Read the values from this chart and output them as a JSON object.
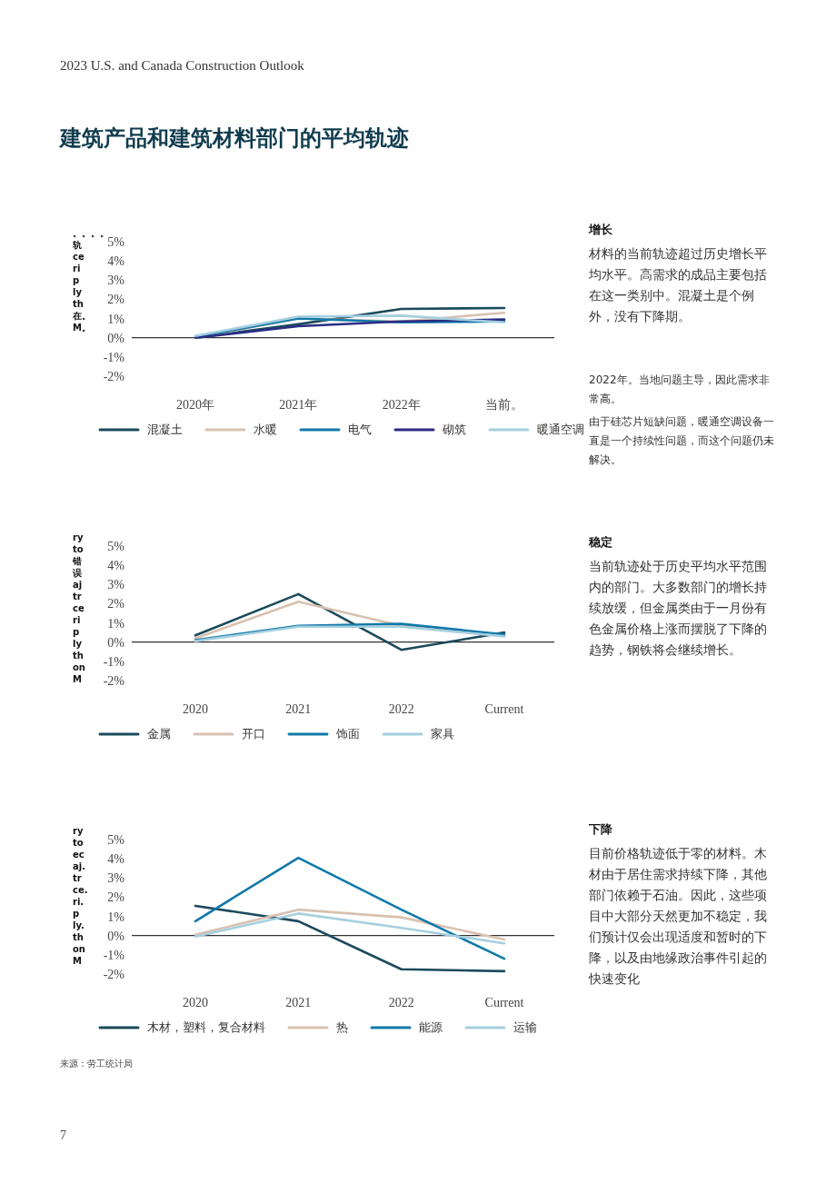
{
  "chart_data": [
    {
      "type": "line",
      "title": "建筑产品和建筑材料部门的平均轨迹",
      "subtitle": "2023 U.S. and Canada Construction Outlook",
      "ylabel": "。。。。轨\nce\nri\np\nly\nth\n在。\nM。",
      "categories": [
        "2020年",
        "2021年",
        "2022年",
        "当前。"
      ],
      "ylim": [
        -2,
        5
      ],
      "yticks": [
        {
          "value": -2,
          "label": "-2%"
        },
        {
          "value": -1,
          "label": "-1%"
        },
        {
          "value": 0,
          "label": "0%"
        },
        {
          "value": 1,
          "label": "1%"
        },
        {
          "value": 2,
          "label": "2%"
        },
        {
          "value": 3,
          "label": "3%"
        },
        {
          "value": 4,
          "label": "4%"
        },
        {
          "value": 5,
          "label": "5%"
        }
      ],
      "grid": false,
      "legend": "bottom",
      "marker": "none",
      "line_style": "solid",
      "ref_lines": [
        {
          "axis": "y",
          "value": 0,
          "color": "#333333"
        }
      ],
      "series": [
        {
          "name": "混凝土",
          "color": "#1b4a5c",
          "values": [
            0,
            0.7,
            1.5,
            1.55
          ]
        },
        {
          "name": "水暖",
          "color": "#d8c1b0",
          "values": [
            0,
            1.0,
            0.85,
            1.3
          ]
        },
        {
          "name": "电气",
          "color": "#1279a8",
          "values": [
            0.05,
            1.0,
            0.8,
            0.85
          ]
        },
        {
          "name": "砌筑",
          "color": "#2a2d84",
          "values": [
            0,
            0.6,
            0.85,
            0.95
          ]
        },
        {
          "name": "暖通空调",
          "color": "#a6cfe0",
          "values": [
            0.1,
            1.1,
            1.15,
            0.8
          ]
        }
      ],
      "annotations": [
        "增长",
        "材料的当前轨迹超过历史增长平均水平。高需求的成品主要包括在这一类别中。混凝土是个例外，没有下降期。",
        "2022年。当地问题主导，因此需求非常高。",
        "由于硅芯片短缺问题，暖通空调设备一直是一个持续性问题，而这个问题仍未解决。"
      ]
    },
    {
      "type": "line",
      "ylabel": "ry\nto\n错误\naj\ntr\nce\nri\np\nly\nth\non\nM",
      "categories": [
        "2020",
        "2021",
        "2022",
        "Current"
      ],
      "ylim": [
        -2,
        5
      ],
      "yticks": [
        {
          "value": -2,
          "label": "-2%"
        },
        {
          "value": -1,
          "label": "-1%"
        },
        {
          "value": 0,
          "label": "0%"
        },
        {
          "value": 1,
          "label": "1%"
        },
        {
          "value": 2,
          "label": "2%"
        },
        {
          "value": 3,
          "label": "3%"
        },
        {
          "value": 4,
          "label": "4%"
        },
        {
          "value": 5,
          "label": "5%"
        }
      ],
      "grid": false,
      "legend": "bottom",
      "marker": "none",
      "line_style": "solid",
      "ref_lines": [
        {
          "axis": "y",
          "value": 0,
          "color": "#333333"
        }
      ],
      "series": [
        {
          "name": "金属",
          "color": "#1b4a5c",
          "values": [
            0.35,
            2.5,
            -0.4,
            0.5
          ]
        },
        {
          "name": "开口",
          "color": "#d8c1b0",
          "values": [
            0.2,
            2.1,
            0.85,
            0.35
          ]
        },
        {
          "name": "饰面",
          "color": "#1279a8",
          "values": [
            0.1,
            0.85,
            0.95,
            0.4
          ]
        },
        {
          "name": "家具",
          "color": "#a6cfe0",
          "values": [
            0.05,
            0.8,
            0.8,
            0.3
          ]
        }
      ],
      "annotations": [
        "稳定",
        "当前轨迹处于历史平均水平范围内的部门。大多数部门的增长持续放缓，但金属类由于一月份有色金属价格上涨而摆脱了下降的趋势，钢铁将会继续增长。"
      ]
    },
    {
      "type": "line",
      "ylabel": "ry\nto\nec\naj.\ntr\nce.\nri.\np\nly.\nth\non\nM",
      "categories": [
        "2020",
        "2021",
        "2022",
        "Current"
      ],
      "ylim": [
        -2,
        5
      ],
      "yticks": [
        {
          "value": -2,
          "label": "-2%"
        },
        {
          "value": -1,
          "label": "-1%"
        },
        {
          "value": 0,
          "label": "0%"
        },
        {
          "value": 1,
          "label": "1%"
        },
        {
          "value": 2,
          "label": "2%"
        },
        {
          "value": 3,
          "label": "3%"
        },
        {
          "value": 4,
          "label": "4%"
        },
        {
          "value": 5,
          "label": "5%"
        }
      ],
      "grid": false,
      "legend": "bottom",
      "marker": "none",
      "line_style": "solid",
      "ref_lines": [
        {
          "axis": "y",
          "value": 0,
          "color": "#333333"
        }
      ],
      "series": [
        {
          "name": "木材，塑料，复合材料",
          "color": "#1b4a5c",
          "values": [
            1.55,
            0.75,
            -1.75,
            -1.85
          ]
        },
        {
          "name": "热",
          "color": "#d8c1b0",
          "values": [
            0.05,
            1.35,
            0.95,
            -0.2
          ]
        },
        {
          "name": "能源",
          "color": "#1279a8",
          "values": [
            0.75,
            4.05,
            1.35,
            -1.2
          ]
        },
        {
          "name": "运输",
          "color": "#a6cfe0",
          "values": [
            -0.05,
            1.15,
            0.4,
            -0.4
          ]
        }
      ],
      "annotations": [
        "下降",
        "目前价格轨迹低于零的材料。木材由于居住需求持续下降，其他部门依赖于石油。因此，这些项目中大部分天然更加不稳定，我们预计仅会出现适度和暂时的下降，以及由地缘政治事件引起的快速变化",
        "来源：劳工统计局",
        "7"
      ]
    }
  ]
}
